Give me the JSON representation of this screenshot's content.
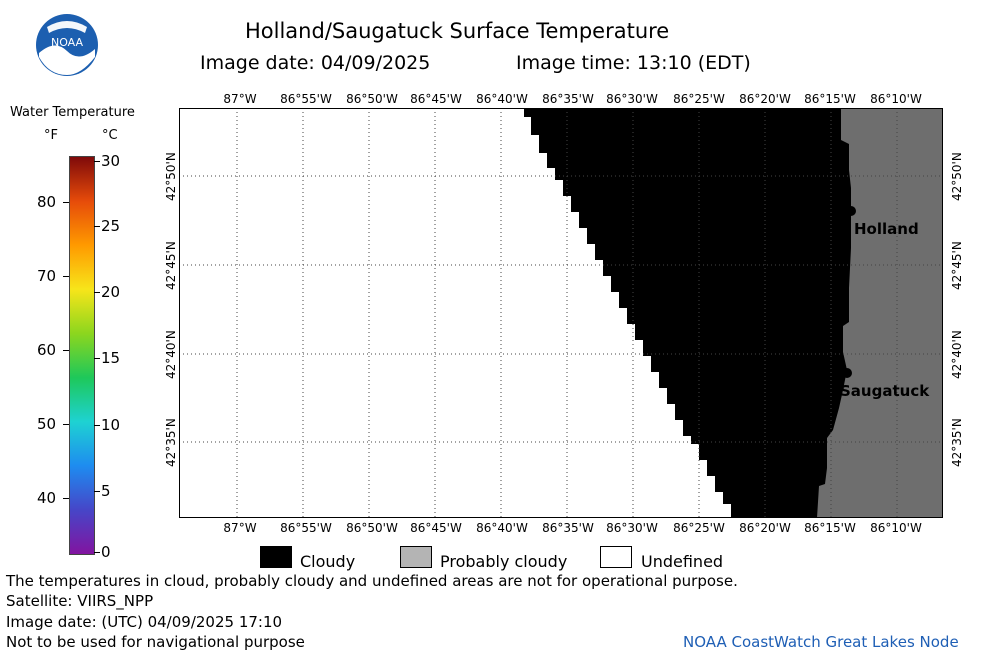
{
  "header": {
    "title": "Holland/Saugatuck Surface Temperature",
    "date_label": "Image date: 04/09/2025",
    "time_label": "Image time: 13:10 (EDT)"
  },
  "logo": {
    "text": "NOAA"
  },
  "colorbar": {
    "title": "Water Temperature",
    "unit_f": "°F",
    "unit_c": "°C",
    "f_ticks": [
      "80",
      "70",
      "60",
      "50",
      "40"
    ],
    "c_ticks": [
      "30",
      "25",
      "20",
      "15",
      "10",
      "5",
      "0"
    ],
    "colors": [
      "#7f0a0a",
      "#e64b0a",
      "#ff9a00",
      "#f7e51a",
      "#8cd61e",
      "#1ec85a",
      "#1ed2d2",
      "#1e8cf0",
      "#4646c8",
      "#8214a0"
    ]
  },
  "map": {
    "lon_labels": [
      "87°W",
      "86°55'W",
      "86°50'W",
      "86°45'W",
      "86°40'W",
      "86°35'W",
      "86°30'W",
      "86°25'W",
      "86°20'W",
      "86°15'W",
      "86°10'W"
    ],
    "lat_labels": [
      "42°50'N",
      "42°45'N",
      "42°40'N",
      "42°35'N"
    ],
    "cities": [
      {
        "name": "Holland"
      },
      {
        "name": "Saugatuck"
      }
    ],
    "colors": {
      "cloudy": "#000000",
      "land": "#6e6e6e",
      "undefined": "#ffffff"
    }
  },
  "legend": {
    "cloudy": "Cloudy",
    "probably_cloudy": "Probably cloudy",
    "undefined": "Undefined",
    "probably_cloudy_color": "#b4b4b4"
  },
  "footer": {
    "disclaimer": "The temperatures in cloud, probably cloudy and undefined areas are not for operational purpose.",
    "satellite": "Satellite: VIIRS_NPP",
    "utc_date": "Image date: (UTC) 04/09/2025  17:10",
    "navigation": "Not to be used for navigational purpose",
    "credit": "NOAA CoastWatch Great Lakes Node"
  }
}
